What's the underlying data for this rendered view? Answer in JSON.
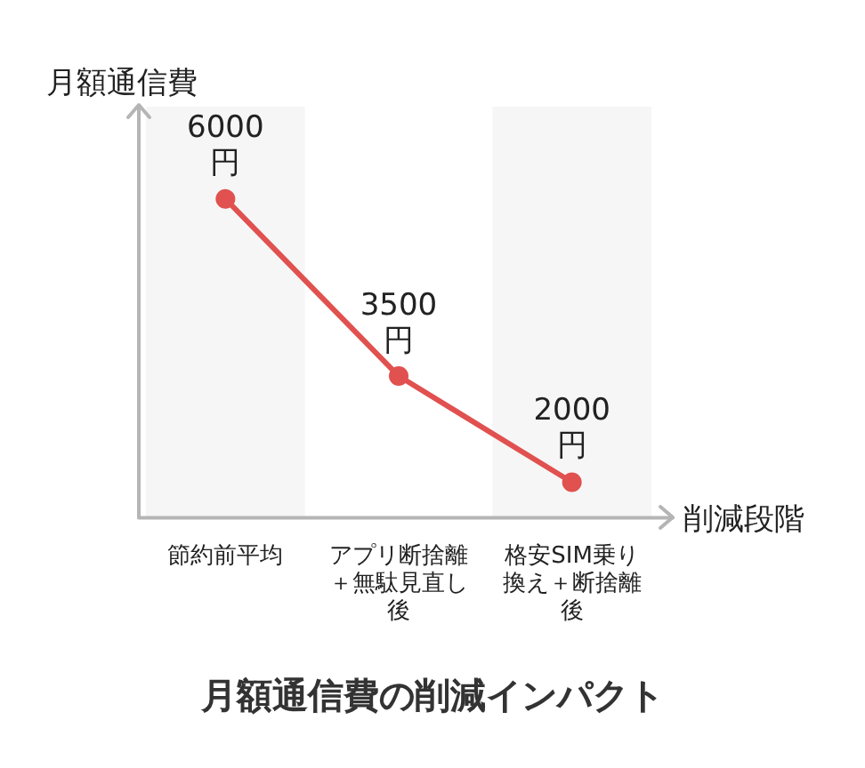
{
  "chart_data": {
    "type": "line",
    "title": "月額通信費の削減インパクト",
    "xlabel": "削減段階",
    "ylabel": "月額通信費",
    "categories": [
      "節約前平均",
      "アプリ断捨離＋無駄見直し後",
      "格安SIM乗り換え＋断捨離後"
    ],
    "series": [
      {
        "color": "#e0514f",
        "values": [
          6000,
          3500,
          2000
        ],
        "value_labels": [
          "6000円",
          "3500円",
          "2000円"
        ]
      }
    ],
    "bands": [
      {
        "axis": "x",
        "from": "節約前平均",
        "to": "節約前平均",
        "color": "#f6f6f6"
      },
      {
        "axis": "x",
        "from": "格安SIM乗り換え＋断捨離後",
        "to": "格安SIM乗り換え＋断捨離後",
        "color": "#f6f6f6"
      }
    ],
    "tick_labels": "x",
    "grid": false,
    "legend": false,
    "marker": "circle",
    "line_style": "solid"
  }
}
